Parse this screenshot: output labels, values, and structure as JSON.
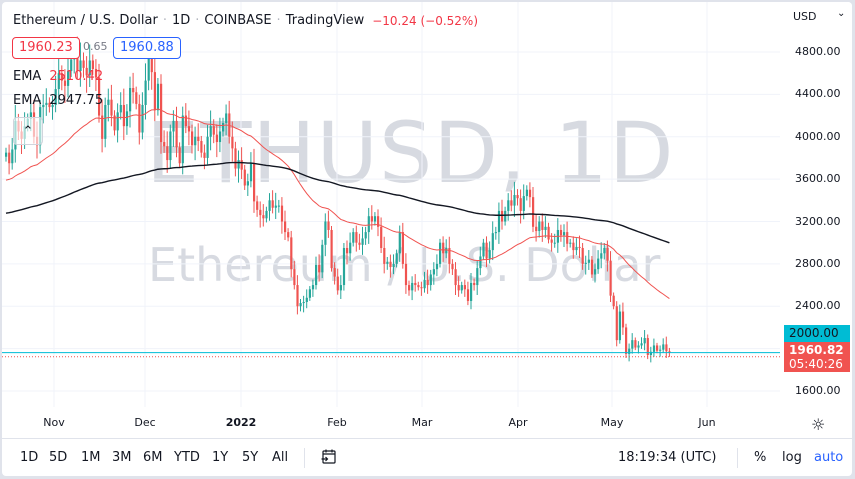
{
  "header": {
    "symbol": "Ethereum / U.S. Dollar",
    "interval": "1D",
    "exchange": "COINBASE",
    "source": "TradingView",
    "change": "−10.24 (−0.52%)"
  },
  "quotes": {
    "sell": "1960.23",
    "spread": "0.65",
    "buy": "1960.88"
  },
  "indicators": [
    {
      "name": "EMA",
      "value": "2510.42",
      "color": "#f23645"
    },
    {
      "name": "EMA",
      "value": "2947.75",
      "color": "#131722"
    }
  ],
  "watermark": {
    "symbol": "ETHUSD, 1D",
    "description": "Ethereum / U.S. Dollar"
  },
  "price_axis": {
    "currency": "USD",
    "ticks": [
      "4800.00",
      "4400.00",
      "4000.00",
      "3600.00",
      "3200.00",
      "2800.00",
      "2400.00",
      "2000.00",
      "1600.00"
    ],
    "alert_label": "2000.00",
    "last_price": "1960.82",
    "countdown": "05:40:26"
  },
  "time_axis": {
    "ticks": [
      "Nov",
      "Dec",
      "2022",
      "Feb",
      "Mar",
      "Apr",
      "May",
      "Jun"
    ]
  },
  "bottom_toolbar": {
    "ranges": [
      "1D",
      "5D",
      "1M",
      "3M",
      "6M",
      "YTD",
      "1Y",
      "5Y",
      "All"
    ],
    "clock": "18:19:34 (UTC)",
    "percent": "%",
    "log": "log",
    "auto": "auto"
  },
  "colors": {
    "up": "#26a69a",
    "down": "#ef5350",
    "ema_fast": "#f05350",
    "ema_slow": "#131722",
    "alert": "#00bcd4"
  },
  "chart_data": {
    "type": "candlestick",
    "title": "Ethereum / U.S. Dollar · 1D · COINBASE",
    "xlabel": "",
    "ylabel": "USD",
    "ylim": [
      1400,
      4950
    ],
    "x_ticks": [
      "Nov",
      "Dec",
      "2022",
      "Feb",
      "Mar",
      "Apr",
      "May",
      "Jun"
    ],
    "x_range": [
      "2021-10-17",
      "2022-05-24"
    ],
    "closes_daily_from_2021_10_17": [
      3850,
      3750,
      3880,
      4150,
      4050,
      3980,
      4100,
      4170,
      4230,
      4000,
      3920,
      4280,
      4300,
      4320,
      4280,
      4300,
      4450,
      4600,
      4530,
      4480,
      4620,
      4730,
      4810,
      4620,
      4720,
      4650,
      4580,
      4720,
      4640,
      4560,
      4200,
      3980,
      4300,
      4350,
      4200,
      4060,
      4230,
      4300,
      4100,
      4240,
      4460,
      4420,
      4310,
      4040,
      4300,
      4530,
      4770,
      4610,
      4250,
      4500,
      3950,
      3910,
      3780,
      4050,
      4150,
      3900,
      3750,
      4200,
      4100,
      4050,
      3920,
      4000,
      3960,
      3850,
      3800,
      4000,
      4100,
      4020,
      3950,
      4050,
      4130,
      4220,
      4000,
      3890,
      3700,
      3780,
      3690,
      3540,
      3580,
      3750,
      3390,
      3310,
      3260,
      3230,
      3300,
      3400,
      3330,
      3350,
      3350,
      3200,
      3100,
      3050,
      2750,
      2600,
      2400,
      2430,
      2440,
      2480,
      2560,
      2600,
      2790,
      2720,
      2980,
      3200,
      3120,
      2760,
      2680,
      2550,
      2600,
      2950,
      2900,
      3000,
      3100,
      3000,
      2980,
      3040,
      3100,
      3250,
      3200,
      3250,
      3150,
      2950,
      2800,
      2820,
      2770,
      2800,
      2900,
      3100,
      2800,
      2600,
      2550,
      2620,
      2600,
      2580,
      2570,
      2650,
      2600,
      2700,
      2750,
      2800,
      3000,
      2900,
      2950,
      2800,
      2750,
      2600,
      2550,
      2600,
      2560,
      2450,
      2620,
      2600,
      2760,
      2870,
      3000,
      2850,
      2930,
      3090,
      3100,
      3300,
      3200,
      3300,
      3400,
      3350,
      3450,
      3420,
      3300,
      3440,
      3500,
      3430,
      3150,
      3110,
      3200,
      3120,
      3150,
      3030,
      3000,
      3000,
      3120,
      3070,
      3100,
      2990,
      3000,
      2930,
      2960,
      2950,
      2800,
      2810,
      2840,
      2700,
      2750,
      2850,
      2900,
      2950,
      2830,
      2500,
      2400,
      2080,
      2350,
      2200,
      1950,
      2000,
      2080,
      2010,
      2030,
      2050,
      2100,
      1940,
      1970,
      2030,
      1980,
      1990,
      2040,
      1975,
      1960.82
    ],
    "ema_fast_period_label": "EMA 2510.42",
    "ema_slow_period_label": "EMA 2947.75",
    "annotations": [
      "alert line 2000.00",
      "last price 1960.82",
      "bar countdown 05:40:26"
    ]
  }
}
